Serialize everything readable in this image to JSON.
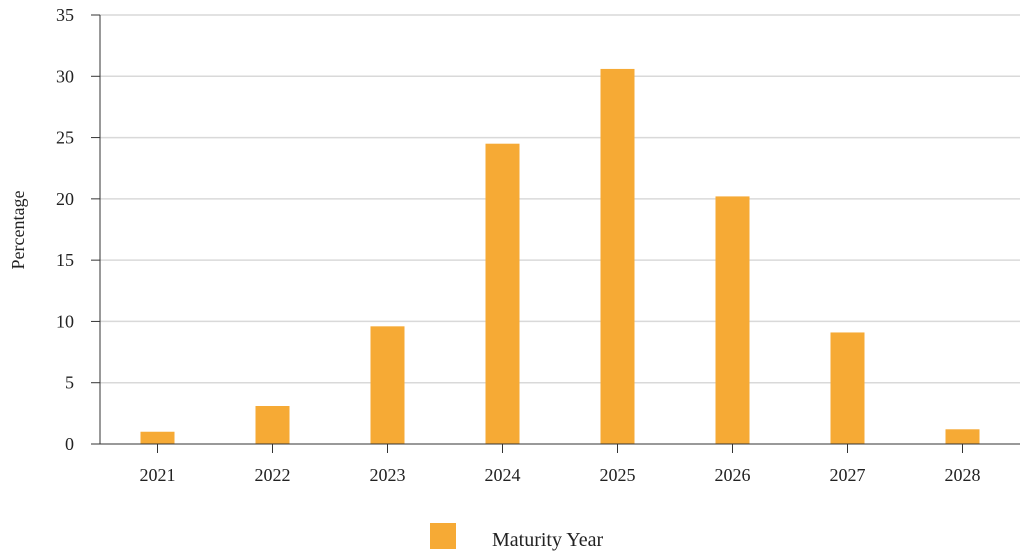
{
  "chart_data": {
    "type": "bar",
    "categories": [
      "2021",
      "2022",
      "2023",
      "2024",
      "2025",
      "2026",
      "2027",
      "2028"
    ],
    "series": [
      {
        "name": "Maturity Year",
        "values": [
          1.0,
          3.1,
          9.6,
          24.5,
          30.6,
          20.2,
          9.1,
          1.2
        ],
        "color": "#f6aa35"
      }
    ],
    "title": "",
    "xlabel": "",
    "ylabel": "Percentage",
    "ylim": [
      0,
      35
    ],
    "yticks": [
      0,
      5,
      10,
      15,
      20,
      25,
      30,
      35
    ],
    "grid": true,
    "legend_position": "bottom-center",
    "colors": {
      "bar": "#f6aa35",
      "grid": "#d9d9d9",
      "axis": "#333333"
    }
  }
}
